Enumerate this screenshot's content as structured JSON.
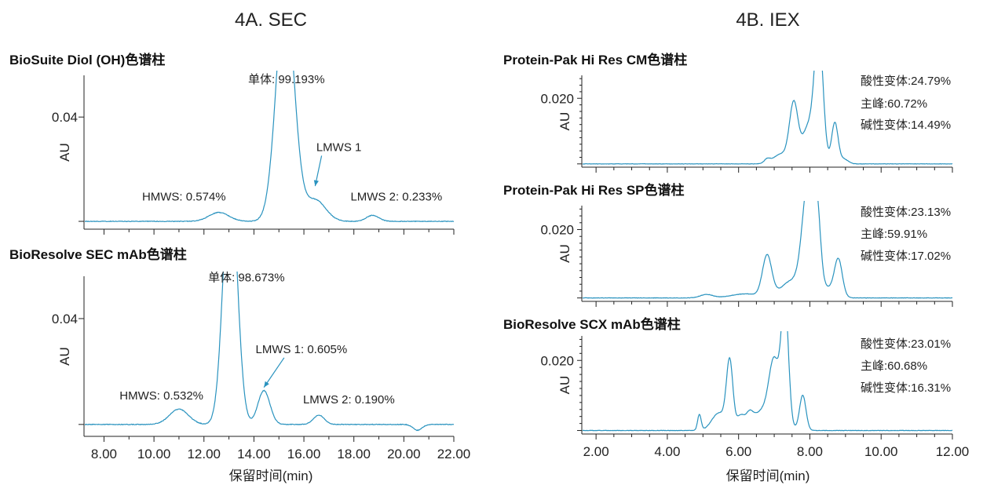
{
  "figure": {
    "left_title": "4A. SEC",
    "right_title": "4B. IEX",
    "left_xlabel": "保留时间(min)",
    "right_xlabel": "保留时间(min)"
  },
  "colors": {
    "trace": "#2a93bf",
    "axis": "#222222",
    "annotation_arrow": "#2a93bf"
  },
  "chart_data": [
    {
      "type": "line",
      "title": "BioSuite Diol (OH)色谱柱",
      "ylabel": "AU",
      "xlim": [
        7.2,
        22.0
      ],
      "ylim": [
        -0.003,
        0.056
      ],
      "yticks": [
        0.04
      ],
      "ytick_labels": [
        "0.04"
      ],
      "x_tick_labels_shown": false,
      "series": [
        {
          "values_note": "",
          "peaks": [
            {
              "center": 12.6,
              "height": 0.0034,
              "width": 0.4
            },
            {
              "center": 15.25,
              "height": 0.088,
              "width": 0.36
            },
            {
              "center": 16.45,
              "height": 0.0082,
              "width": 0.42
            },
            {
              "center": 18.75,
              "height": 0.0023,
              "width": 0.25
            }
          ]
        }
      ],
      "annotations": [
        {
          "text": "单体: 99.193%",
          "x": 15.3,
          "y": 0.053
        },
        {
          "text": "LMWS 1",
          "x": 17.4,
          "y": 0.027,
          "arrow_to": [
            16.45,
            0.0135
          ]
        },
        {
          "text": "HMWS: 0.574%",
          "x": 11.2,
          "y": 0.008
        },
        {
          "text": "LMWS 2: 0.233%",
          "x": 19.7,
          "y": 0.008
        }
      ]
    },
    {
      "type": "line",
      "title": "BioResolve SEC mAb色谱柱",
      "ylabel": "AU",
      "xlim": [
        7.2,
        22.0
      ],
      "ylim": [
        -0.0045,
        0.056
      ],
      "yticks": [
        0.04
      ],
      "ytick_labels": [
        "0.04"
      ],
      "xticks": [
        8,
        10,
        12,
        14,
        16,
        18,
        20,
        22
      ],
      "xtick_labels": [
        "8.00",
        "10.00",
        "12.00",
        "14.00",
        "16.00",
        "18.00",
        "20.00",
        "22.00"
      ],
      "series": [
        {
          "values_note": "",
          "peaks": [
            {
              "center": 11.0,
              "height": 0.0058,
              "width": 0.38
            },
            {
              "center": 13.05,
              "height": 0.095,
              "width": 0.28
            },
            {
              "center": 14.4,
              "height": 0.0128,
              "width": 0.24
            },
            {
              "center": 16.6,
              "height": 0.0035,
              "width": 0.22
            },
            {
              "center": 20.55,
              "height": -0.0022,
              "width": 0.18
            }
          ]
        }
      ],
      "annotations": [
        {
          "text": "单体: 98.673%",
          "x": 13.7,
          "y": 0.054
        },
        {
          "text": "LMWS 1: 0.605%",
          "x": 15.9,
          "y": 0.027,
          "arrow_to": [
            14.4,
            0.014
          ]
        },
        {
          "text": "HMWS: 0.532%",
          "x": 10.3,
          "y": 0.0095
        },
        {
          "text": "LMWS 2: 0.190%",
          "x": 17.8,
          "y": 0.008
        }
      ]
    },
    {
      "type": "line",
      "title": "Protein-Pak Hi Res CM色谱柱",
      "ylabel": "AU",
      "xlim": [
        1.6,
        12.0
      ],
      "ylim": [
        -0.001,
        0.027
      ],
      "yticks": [
        0.02
      ],
      "ytick_labels": [
        "0.020"
      ],
      "x_tick_labels_shown": false,
      "legend_lines": [
        "酸性变体:24.79%",
        "主峰:60.72%",
        "碱性变体:14.49%"
      ],
      "series": [
        {
          "values_note": "",
          "peaks": [
            {
              "center": 6.8,
              "height": 0.0012,
              "width": 0.08
            },
            {
              "center": 7.2,
              "height": 0.003,
              "width": 0.22
            },
            {
              "center": 7.55,
              "height": 0.018,
              "width": 0.12
            },
            {
              "center": 7.95,
              "height": 0.011,
              "width": 0.16
            },
            {
              "center": 8.25,
              "height": 0.04,
              "width": 0.12
            },
            {
              "center": 8.7,
              "height": 0.0125,
              "width": 0.09
            },
            {
              "center": 8.95,
              "height": 0.0015,
              "width": 0.12
            }
          ]
        }
      ]
    },
    {
      "type": "line",
      "title": "Protein-Pak Hi Res SP色谱柱",
      "ylabel": "AU",
      "xlim": [
        1.6,
        12.0
      ],
      "ylim": [
        -0.001,
        0.027
      ],
      "yticks": [
        0.02
      ],
      "ytick_labels": [
        "0.020"
      ],
      "x_tick_labels_shown": false,
      "legend_lines": [
        "酸性变体:23.13%",
        "主峰:59.91%",
        "碱性变体:17.02%"
      ],
      "series": [
        {
          "values_note": "",
          "peaks": [
            {
              "center": 5.1,
              "height": 0.001,
              "width": 0.18
            },
            {
              "center": 6.2,
              "height": 0.0012,
              "width": 0.4
            },
            {
              "center": 6.8,
              "height": 0.012,
              "width": 0.13
            },
            {
              "center": 7.5,
              "height": 0.005,
              "width": 0.3
            },
            {
              "center": 7.95,
              "height": 0.032,
              "width": 0.16
            },
            {
              "center": 8.2,
              "height": 0.02,
              "width": 0.1
            },
            {
              "center": 8.8,
              "height": 0.0105,
              "width": 0.11
            },
            {
              "center": 8.45,
              "height": 0.003,
              "width": 0.25
            }
          ]
        }
      ]
    },
    {
      "type": "line",
      "title": "BioResolve SCX mAb色谱柱",
      "ylabel": "AU",
      "xlim": [
        1.6,
        12.0
      ],
      "ylim": [
        -0.001,
        0.027
      ],
      "yticks": [
        0.02
      ],
      "ytick_labels": [
        "0.020"
      ],
      "xticks": [
        2,
        4,
        6,
        8,
        10,
        12
      ],
      "xtick_labels": [
        "2.00",
        "4.00",
        "6.00",
        "8.00",
        "10.00",
        "12.00"
      ],
      "legend_lines": [
        "酸性变体:23.01%",
        "主峰:60.68%",
        "碱性变体:16.31%"
      ],
      "series": [
        {
          "values_note": "",
          "peaks": [
            {
              "center": 4.9,
              "height": 0.0045,
              "width": 0.05
            },
            {
              "center": 5.45,
              "height": 0.005,
              "width": 0.2
            },
            {
              "center": 5.75,
              "height": 0.019,
              "width": 0.09
            },
            {
              "center": 6.05,
              "height": 0.0035,
              "width": 0.1
            },
            {
              "center": 6.3,
              "height": 0.003,
              "width": 0.1
            },
            {
              "center": 6.75,
              "height": 0.006,
              "width": 0.35
            },
            {
              "center": 7.0,
              "height": 0.016,
              "width": 0.14
            },
            {
              "center": 7.3,
              "height": 0.035,
              "width": 0.1
            },
            {
              "center": 7.8,
              "height": 0.01,
              "width": 0.09
            }
          ]
        }
      ]
    }
  ]
}
